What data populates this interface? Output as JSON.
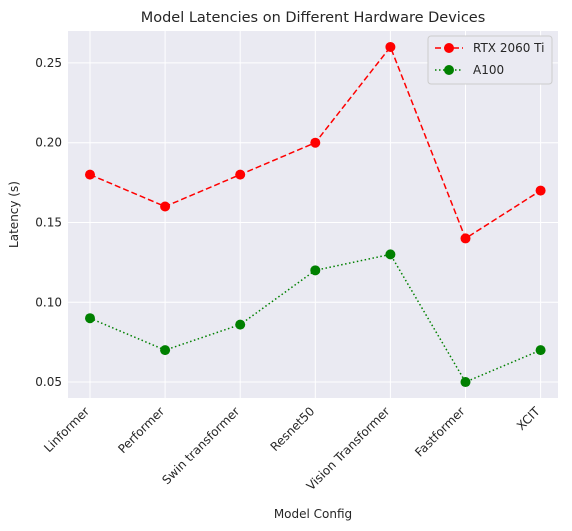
{
  "chart_data": {
    "type": "line",
    "title": "Model Latencies on Different Hardware Devices",
    "xlabel": "Model Config",
    "ylabel": "Latency (s)",
    "categories": [
      "Linformer",
      "Performer",
      "Swin transformer",
      "Resnet50",
      "Vision Transformer",
      "Fastformer",
      "XCIT"
    ],
    "ylim": [
      0.04,
      0.27
    ],
    "yticks": [
      0.05,
      0.1,
      0.15,
      0.2,
      0.25
    ],
    "ytick_labels": [
      "0.05",
      "0.10",
      "0.15",
      "0.20",
      "0.25"
    ],
    "grid": true,
    "legend_position": "top-right",
    "background": "#eaeaf2",
    "series": [
      {
        "name": "RTX 2060 Ti",
        "values": [
          0.18,
          0.16,
          0.18,
          0.2,
          0.26,
          0.14,
          0.17
        ],
        "color": "#ff0000",
        "line_style": "dashed",
        "marker": "circle"
      },
      {
        "name": "A100",
        "values": [
          0.09,
          0.07,
          0.086,
          0.12,
          0.13,
          0.05,
          0.07
        ],
        "color": "#008000",
        "line_style": "dotted",
        "marker": "circle"
      }
    ]
  }
}
